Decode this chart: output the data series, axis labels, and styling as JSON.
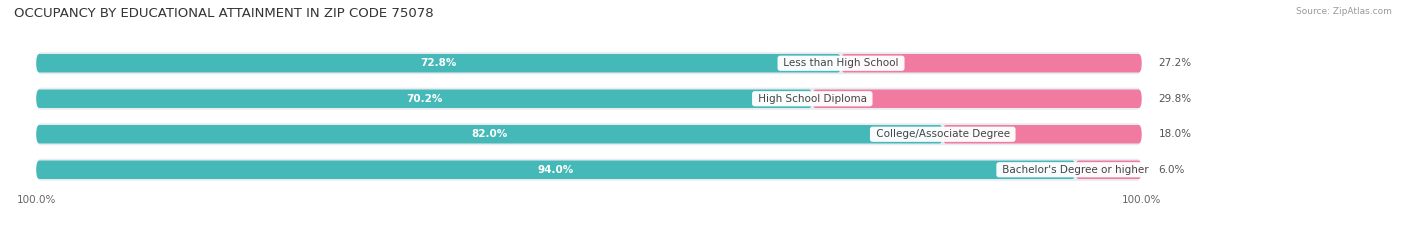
{
  "title": "OCCUPANCY BY EDUCATIONAL ATTAINMENT IN ZIP CODE 75078",
  "source": "Source: ZipAtlas.com",
  "categories": [
    "Less than High School",
    "High School Diploma",
    "College/Associate Degree",
    "Bachelor's Degree or higher"
  ],
  "owner_values": [
    72.8,
    70.2,
    82.0,
    94.0
  ],
  "renter_values": [
    27.2,
    29.8,
    18.0,
    6.0
  ],
  "owner_color": "#45b8b8",
  "renter_color": "#f07aA0",
  "row_bg_color": "#e8ecf0",
  "title_fontsize": 9.5,
  "label_fontsize": 7.5,
  "axis_label_fontsize": 7.5,
  "legend_fontsize": 8,
  "cat_label_fontsize": 7.5
}
